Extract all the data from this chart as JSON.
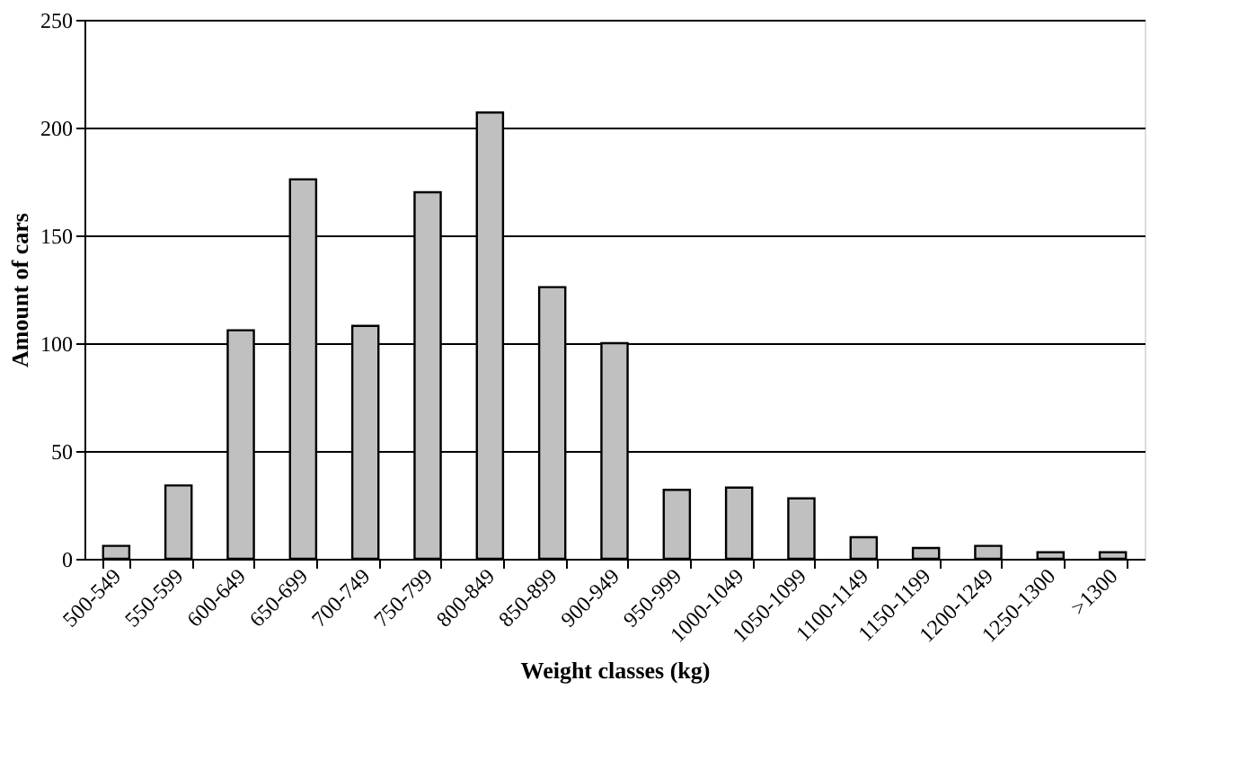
{
  "chart_data": {
    "type": "bar",
    "xlabel": "Weight classes (kg)",
    "ylabel": "Amount of cars",
    "categories": [
      "500-549",
      "550-599",
      "600-649",
      "650-699",
      "700-749",
      "750-799",
      "800-849",
      "850-899",
      "900-949",
      "950-999",
      "1000-1049",
      "1050-1099",
      "1100-1149",
      "1150-1199",
      "1200-1249",
      "1250-1300",
      ">1300"
    ],
    "values": [
      6,
      34,
      106,
      176,
      108,
      170,
      207,
      126,
      100,
      32,
      33,
      28,
      10,
      5,
      6,
      3,
      3
    ],
    "color": "#c0c0c0",
    "ylim": [
      0,
      250
    ],
    "yticks": [
      0,
      50,
      100,
      150,
      200,
      250
    ],
    "grid": "y"
  }
}
